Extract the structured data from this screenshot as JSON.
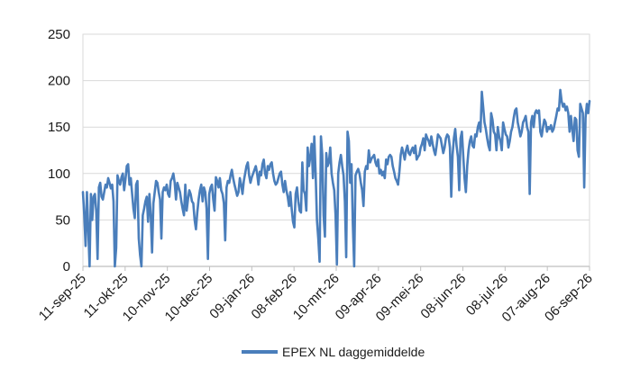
{
  "chart_data": {
    "type": "line",
    "title": "",
    "xlabel": "",
    "ylabel": "",
    "ylim": [
      0,
      250
    ],
    "yticks": [
      0,
      50,
      100,
      150,
      200,
      250
    ],
    "x_tick_labels": [
      "11-sep-25",
      "11-okt-25",
      "10-nov-25",
      "10-dec-25",
      "09-jan-26",
      "08-feb-26",
      "10-mrt-26",
      "09-apr-26",
      "09-mei-26",
      "08-jun-26",
      "08-jul-26",
      "07-aug-26",
      "06-sep-26"
    ],
    "grid": "horizontal",
    "legend_position": "bottom",
    "x_start": "2025-09-11",
    "x_end": "2026-09-06",
    "series": [
      {
        "name": "EPEX NL daggemiddelde",
        "color": "#4a7ebb",
        "values": [
          80,
          55,
          22,
          80,
          40,
          0,
          78,
          50,
          75,
          78,
          60,
          8,
          85,
          90,
          75,
          72,
          80,
          88,
          85,
          95,
          90,
          84,
          88,
          70,
          0,
          20,
          98,
          92,
          88,
          96,
          100,
          82,
          94,
          108,
          110,
          88,
          95,
          78,
          62,
          52,
          88,
          92,
          30,
          12,
          0,
          55,
          62,
          70,
          75,
          48,
          78,
          55,
          15,
          68,
          80,
          92,
          90,
          80,
          72,
          30,
          80,
          85,
          82,
          88,
          78,
          75,
          92,
          95,
          100,
          90,
          72,
          90,
          85,
          80,
          70,
          62,
          55,
          88,
          60,
          72,
          82,
          78,
          70,
          68,
          50,
          40,
          58,
          72,
          82,
          88,
          70,
          85,
          80,
          62,
          8,
          78,
          85,
          88,
          72,
          60,
          96,
          92,
          85,
          95,
          82,
          78,
          68,
          28,
          85,
          92,
          90,
          98,
          104,
          95,
          88,
          82,
          76,
          80,
          95,
          88,
          78,
          92,
          100,
          108,
          112,
          98,
          90,
          96,
          100,
          104,
          108,
          100,
          88,
          102,
          98,
          110,
          115,
          100,
          95,
          108,
          104,
          110,
          112,
          100,
          92,
          88,
          90,
          95,
          100,
          102,
          88,
          80,
          92,
          82,
          75,
          65,
          80,
          62,
          48,
          42,
          78,
          85,
          70,
          60,
          58,
          112,
          82,
          78,
          60,
          128,
          108,
          118,
          132,
          95,
          140,
          100,
          50,
          30,
          5,
          140,
          120,
          55,
          32,
          122,
          108,
          112,
          128,
          100,
          90,
          82,
          55,
          2,
          100,
          112,
          120,
          108,
          98,
          70,
          10,
          145,
          135,
          90,
          110,
          45,
          0,
          98,
          102,
          105,
          100,
          90,
          82,
          65,
          102,
          108,
          105,
          125,
          112,
          116,
          118,
          120,
          112,
          108,
          115,
          100,
          104,
          98,
          102,
          95,
          115,
          110,
          118,
          120,
          118,
          108,
          102,
          95,
          92,
          88,
          102,
          120,
          128,
          122,
          115,
          125,
          130,
          122,
          120,
          125,
          128,
          122,
          130,
          115,
          118,
          120,
          128,
          132,
          138,
          125,
          142,
          138,
          135,
          130,
          140,
          132,
          125,
          120,
          130,
          142,
          140,
          138,
          130,
          122,
          128,
          138,
          142,
          140,
          128,
          75,
          120,
          138,
          148,
          130,
          118,
          82,
          138,
          145,
          120,
          95,
          80,
          108,
          125,
          135,
          140,
          130,
          128,
          142,
          140,
          150,
          155,
          145,
          188,
          172,
          155,
          148,
          138,
          130,
          125,
          165,
          158,
          145,
          142,
          125,
          150,
          140,
          135,
          125,
          155,
          148,
          142,
          140,
          128,
          135,
          145,
          150,
          160,
          168,
          170,
          155,
          148,
          140,
          145,
          155,
          158,
          162,
          150,
          145,
          78,
          155,
          162,
          150,
          165,
          168,
          165,
          168,
          145,
          140,
          150,
          158,
          155,
          145,
          150,
          148,
          152,
          145,
          148,
          155,
          162,
          170,
          168,
          190,
          178,
          172,
          175,
          168,
          172,
          165,
          145,
          162,
          148,
          135,
          160,
          158,
          125,
          118,
          175,
          170,
          165,
          85,
          160,
          175,
          165,
          178
        ]
      }
    ]
  }
}
